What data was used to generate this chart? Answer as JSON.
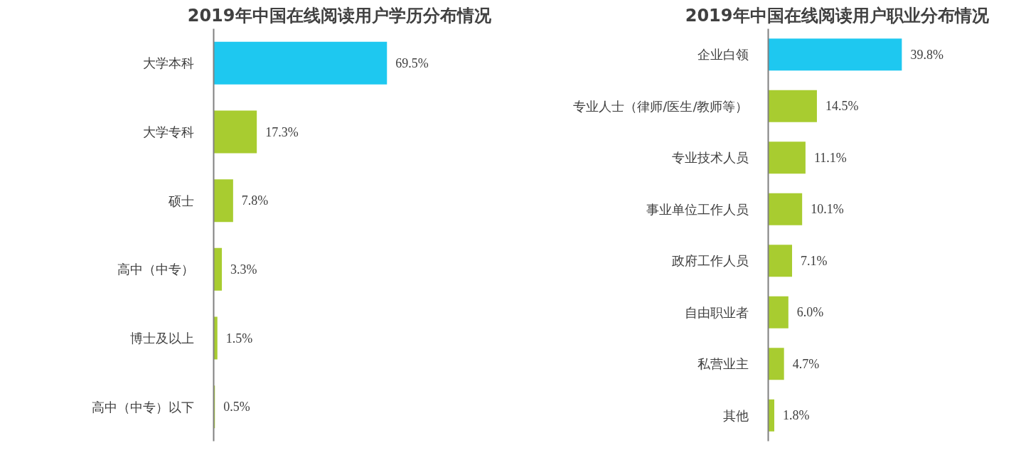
{
  "chart_data": [
    {
      "type": "bar",
      "orientation": "horizontal",
      "title": "2019年中国在线阅读用户学历分布情况",
      "categories": [
        "大学本科",
        "大学专科",
        "硕士",
        "高中（中专）",
        "博士及以上",
        "高中（中专）以下"
      ],
      "values": [
        69.5,
        17.3,
        7.8,
        3.3,
        1.5,
        0.5
      ],
      "value_labels": [
        "69.5%",
        "17.3%",
        "7.8%",
        "3.3%",
        "1.5%",
        "0.5%"
      ],
      "colors": [
        "#1ec8f0",
        "#a8cc30",
        "#a8cc30",
        "#a8cc30",
        "#a8cc30",
        "#a8cc30"
      ],
      "grid": false
    },
    {
      "type": "bar",
      "orientation": "horizontal",
      "title": "2019年中国在线阅读用户职业分布情况",
      "categories": [
        "企业白领",
        "专业人士（律师/医生/教师等）",
        "专业技术人员",
        "事业单位工作人员",
        "政府工作人员",
        "自由职业者",
        "私营业主",
        "其他"
      ],
      "values": [
        39.8,
        14.5,
        11.1,
        10.1,
        7.1,
        6.0,
        4.7,
        1.8
      ],
      "value_labels": [
        "39.8%",
        "14.5%",
        "11.1%",
        "10.1%",
        "7.1%",
        "6.0%",
        "4.7%",
        "1.8%"
      ],
      "colors": [
        "#1ec8f0",
        "#a8cc30",
        "#a8cc30",
        "#a8cc30",
        "#a8cc30",
        "#a8cc30",
        "#a8cc30",
        "#a8cc30"
      ],
      "grid": false
    }
  ]
}
